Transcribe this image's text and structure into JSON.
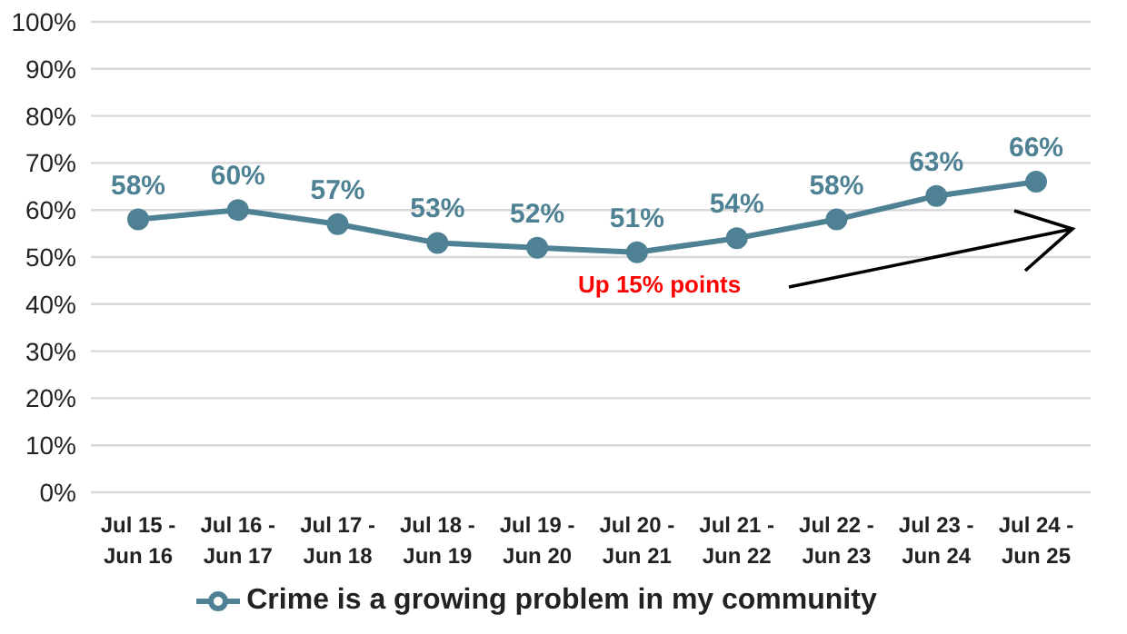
{
  "chart_data": {
    "type": "line",
    "categories": [
      "Jul 15 - Jun 16",
      "Jul 16 - Jun 17",
      "Jul 17 - Jun 18",
      "Jul 18 - Jun 19",
      "Jul 19 - Jun 20",
      "Jul 20 - Jun 21",
      "Jul 21 - Jun 22",
      "Jul 22 - Jun 23",
      "Jul 23 - Jun 24",
      "Jul 24 - Jun 25"
    ],
    "series": [
      {
        "name": "Crime is a growing problem in my community",
        "color": "#4e8193",
        "values": [
          58,
          60,
          57,
          53,
          52,
          51,
          54,
          58,
          63,
          66
        ],
        "value_labels": [
          "58%",
          "60%",
          "57%",
          "53%",
          "52%",
          "51%",
          "54%",
          "58%",
          "63%",
          "66%"
        ]
      }
    ],
    "ylim": [
      0,
      100
    ],
    "yticks": [
      {
        "value": 0,
        "label": "0%"
      },
      {
        "value": 10,
        "label": "10%"
      },
      {
        "value": 20,
        "label": "20%"
      },
      {
        "value": 30,
        "label": "30%"
      },
      {
        "value": 40,
        "label": "40%"
      },
      {
        "value": 50,
        "label": "50%"
      },
      {
        "value": 60,
        "label": "60%"
      },
      {
        "value": 70,
        "label": "70%"
      },
      {
        "value": 80,
        "label": "80%"
      },
      {
        "value": 90,
        "label": "90%"
      },
      {
        "value": 100,
        "label": "100%"
      }
    ],
    "annotations": [
      "Up 15% points"
    ],
    "grid": "y",
    "legend": "bottom",
    "marker": "circle",
    "line_style": "solid"
  }
}
